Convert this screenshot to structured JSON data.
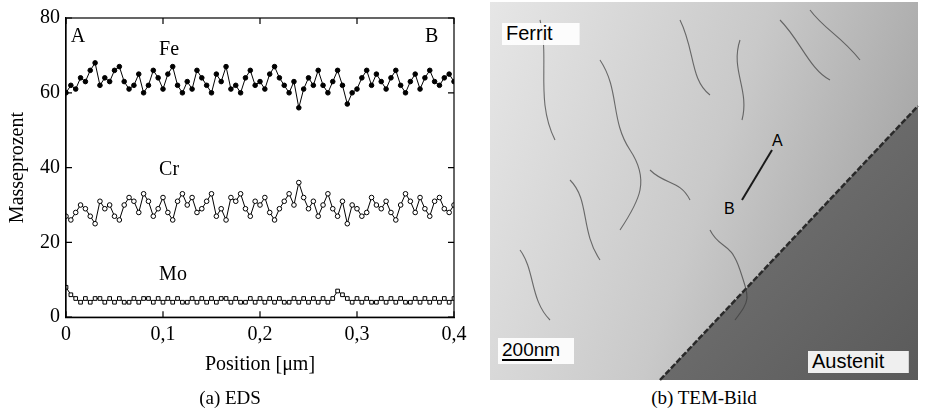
{
  "chart_data": {
    "type": "line",
    "title": "(a) EDS",
    "x_label": "Position [μm]",
    "y_label": "Masseprozent",
    "xlim": [
      0,
      0.4
    ],
    "xticks": [
      0,
      {
        "value": 0.1,
        "label": "0,1"
      },
      {
        "value": 0.2,
        "label": "0,2"
      },
      {
        "value": 0.3,
        "label": "0,3"
      },
      {
        "value": 0.4,
        "label": "0,4"
      }
    ],
    "ylim": [
      0,
      80
    ],
    "yticks": [
      0,
      20,
      40,
      60,
      80
    ],
    "grid": false,
    "annotations": [
      {
        "text": "A",
        "x": 0.005,
        "y": 75
      },
      {
        "text": "B",
        "x": 0.37,
        "y": 75
      }
    ],
    "x": [
      0,
      0.005,
      0.01,
      0.015,
      0.02,
      0.025,
      0.03,
      0.035,
      0.04,
      0.045,
      0.05,
      0.055,
      0.06,
      0.065,
      0.07,
      0.075,
      0.08,
      0.085,
      0.09,
      0.095,
      0.1,
      0.105,
      0.11,
      0.115,
      0.12,
      0.125,
      0.13,
      0.135,
      0.14,
      0.145,
      0.15,
      0.155,
      0.16,
      0.165,
      0.17,
      0.175,
      0.18,
      0.185,
      0.19,
      0.195,
      0.2,
      0.205,
      0.21,
      0.215,
      0.22,
      0.225,
      0.23,
      0.235,
      0.24,
      0.245,
      0.25,
      0.255,
      0.26,
      0.265,
      0.27,
      0.275,
      0.28,
      0.285,
      0.29,
      0.295,
      0.3,
      0.305,
      0.31,
      0.315,
      0.32,
      0.325,
      0.33,
      0.335,
      0.34,
      0.345,
      0.35,
      0.355,
      0.36,
      0.365,
      0.37,
      0.375,
      0.38,
      0.385,
      0.39,
      0.395,
      0.4
    ],
    "series": [
      {
        "name": "Fe",
        "color": "#000000",
        "marker": "circle",
        "line_style": "solid",
        "values": [
          60,
          62,
          61,
          64,
          63,
          66,
          68,
          62,
          64,
          63,
          66,
          67,
          63,
          61,
          62,
          65,
          60,
          62,
          66,
          64,
          61,
          65,
          67,
          62,
          60,
          63,
          61,
          66,
          64,
          62,
          60,
          65,
          63,
          67,
          61,
          62,
          60,
          64,
          66,
          62,
          63,
          61,
          65,
          67,
          64,
          62,
          60,
          63,
          56,
          61,
          64,
          62,
          66,
          62,
          60,
          63,
          66,
          62,
          57,
          60,
          61,
          64,
          66,
          62,
          65,
          63,
          61,
          64,
          66,
          62,
          60,
          63,
          65,
          61,
          64,
          66,
          63,
          62,
          64,
          65,
          63
        ]
      },
      {
        "name": "Cr",
        "color": "#000000",
        "marker": "circle_open",
        "line_style": "solid",
        "values": [
          27,
          26,
          28,
          30,
          29,
          27,
          25,
          31,
          29,
          30,
          27,
          26,
          30,
          32,
          31,
          28,
          33,
          31,
          27,
          29,
          32,
          28,
          26,
          31,
          33,
          30,
          32,
          28,
          29,
          31,
          33,
          27,
          29,
          26,
          32,
          31,
          33,
          29,
          27,
          31,
          30,
          32,
          28,
          26,
          29,
          31,
          33,
          30,
          36,
          32,
          29,
          31,
          27,
          30,
          33,
          29,
          27,
          31,
          25,
          30,
          29,
          27,
          28,
          32,
          30,
          29,
          31,
          28,
          26,
          30,
          33,
          31,
          28,
          32,
          29,
          27,
          31,
          32,
          29,
          28,
          30
        ]
      },
      {
        "name": "Mo",
        "color": "#000000",
        "marker": "square_open",
        "line_style": "solid",
        "values": [
          8,
          6,
          5,
          4,
          5,
          4,
          5,
          5,
          4,
          5,
          4,
          5,
          4,
          4,
          5,
          4,
          5,
          5,
          4,
          5,
          4,
          5,
          4,
          5,
          4,
          4,
          5,
          4,
          5,
          4,
          5,
          4,
          5,
          5,
          4,
          5,
          4,
          4,
          5,
          4,
          5,
          4,
          5,
          4,
          5,
          4,
          4,
          5,
          4,
          5,
          4,
          5,
          4,
          5,
          4,
          5,
          7,
          6,
          5,
          4,
          5,
          4,
          5,
          4,
          4,
          5,
          4,
          5,
          4,
          5,
          4,
          4,
          5,
          4,
          5,
          4,
          5,
          4,
          5,
          4,
          5
        ]
      }
    ]
  },
  "image_panel": {
    "caption": "(b) TEM-Bild",
    "regions": [
      "Ferrit",
      "Austenit"
    ],
    "scale_bar": "200nm",
    "line_points": [
      "A",
      "B"
    ]
  }
}
